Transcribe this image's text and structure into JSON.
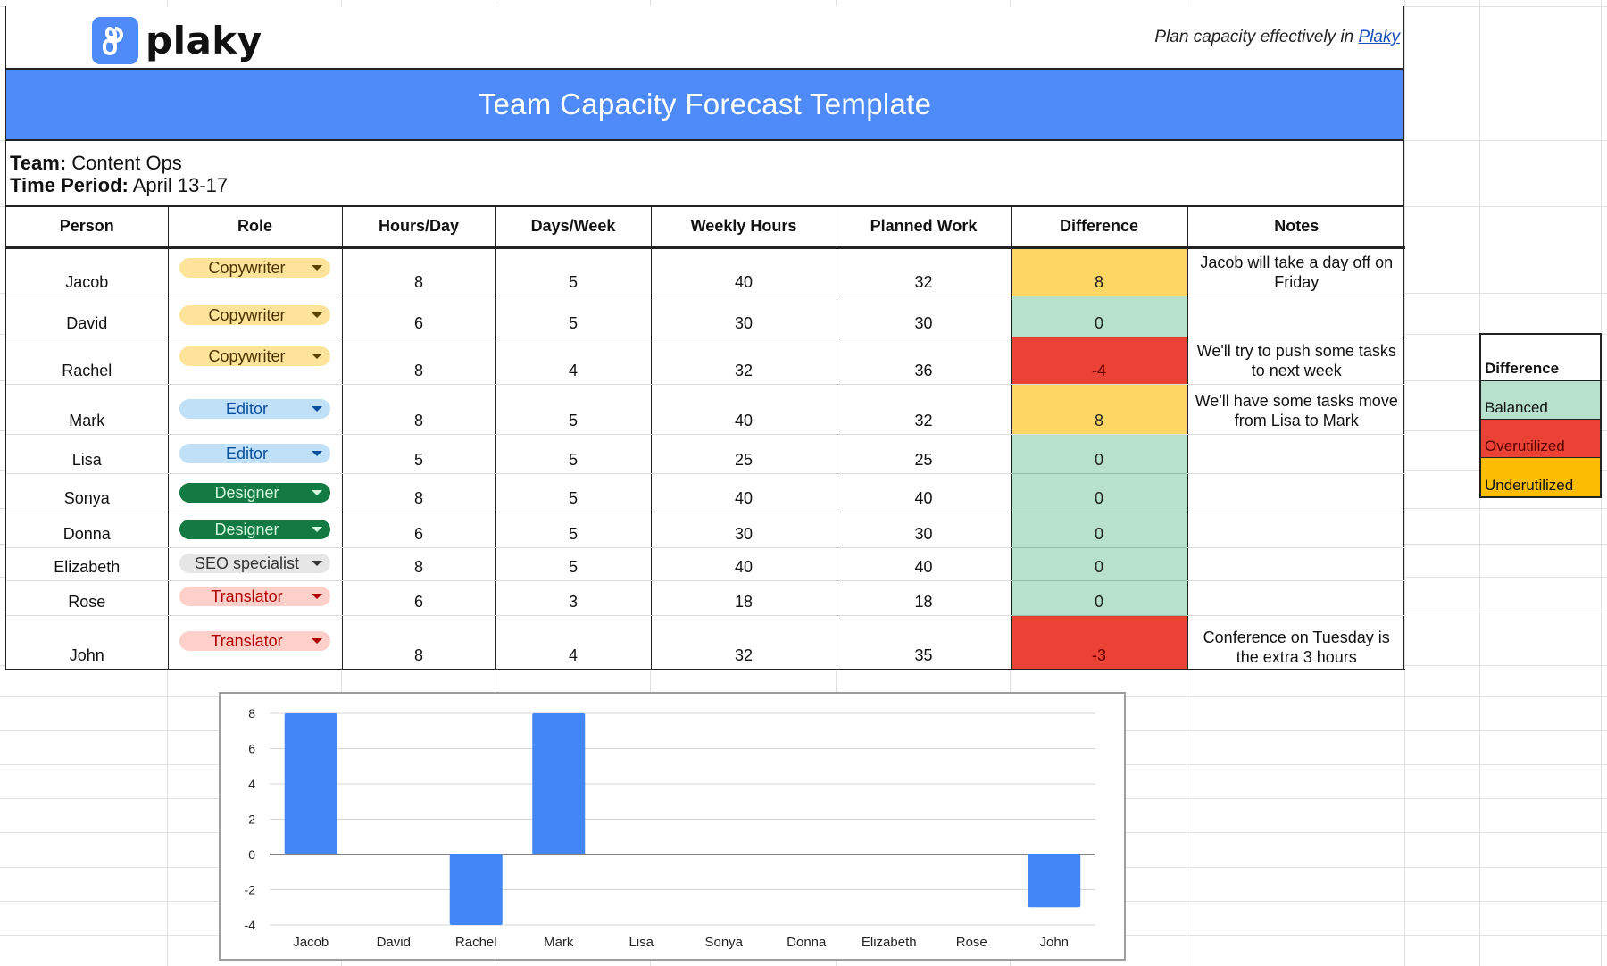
{
  "brand": {
    "name": "plaky",
    "tagline_prefix": "Plan capacity effectively in ",
    "tagline_link": "Plaky"
  },
  "title": "Team Capacity Forecast Template",
  "info": {
    "team_label": "Team:",
    "team_value": " Content Ops",
    "period_label": "Time Period:",
    "period_value": " April 13-17"
  },
  "table": {
    "headers": [
      "Person",
      "Role",
      "Hours/Day",
      "Days/Week",
      "Weekly Hours",
      "Planned Work",
      "Difference",
      "Notes"
    ],
    "rows": [
      {
        "person": "Jacob",
        "role": "Copywriter",
        "hours_day": "8",
        "days_week": "5",
        "weekly_hours": "40",
        "planned": "32",
        "difference": "8",
        "status": "Underutilized",
        "notes": "Jacob will take a day off on Friday"
      },
      {
        "person": "David",
        "role": "Copywriter",
        "hours_day": "6",
        "days_week": "5",
        "weekly_hours": "30",
        "planned": "30",
        "difference": "0",
        "status": "Balanced",
        "notes": ""
      },
      {
        "person": "Rachel",
        "role": "Copywriter",
        "hours_day": "8",
        "days_week": "4",
        "weekly_hours": "32",
        "planned": "36",
        "difference": "-4",
        "status": "Overutilized",
        "notes": "We'll try to push some tasks to next week"
      },
      {
        "person": "Mark",
        "role": "Editor",
        "hours_day": "8",
        "days_week": "5",
        "weekly_hours": "40",
        "planned": "32",
        "difference": "8",
        "status": "Underutilized",
        "notes": "We'll have some tasks move from Lisa to Mark"
      },
      {
        "person": "Lisa",
        "role": "Editor",
        "hours_day": "5",
        "days_week": "5",
        "weekly_hours": "25",
        "planned": "25",
        "difference": "0",
        "status": "Balanced",
        "notes": ""
      },
      {
        "person": "Sonya",
        "role": "Designer",
        "hours_day": "8",
        "days_week": "5",
        "weekly_hours": "40",
        "planned": "40",
        "difference": "0",
        "status": "Balanced",
        "notes": ""
      },
      {
        "person": "Donna",
        "role": "Designer",
        "hours_day": "6",
        "days_week": "5",
        "weekly_hours": "30",
        "planned": "30",
        "difference": "0",
        "status": "Balanced",
        "notes": ""
      },
      {
        "person": "Elizabeth",
        "role": "SEO specialist",
        "hours_day": "8",
        "days_week": "5",
        "weekly_hours": "40",
        "planned": "40",
        "difference": "0",
        "status": "Balanced",
        "notes": ""
      },
      {
        "person": "Rose",
        "role": "Translator",
        "hours_day": "6",
        "days_week": "3",
        "weekly_hours": "18",
        "planned": "18",
        "difference": "0",
        "status": "Balanced",
        "notes": ""
      },
      {
        "person": "John",
        "role": "Translator",
        "hours_day": "8",
        "days_week": "4",
        "weekly_hours": "32",
        "planned": "35",
        "difference": "-3",
        "status": "Overutilized",
        "notes": "Conference on Tuesday is the extra 3 hours"
      }
    ]
  },
  "legend": {
    "title": "Difference",
    "items": [
      {
        "label": "Balanced",
        "color": "#b7e1cd"
      },
      {
        "label": "Overutilized",
        "color": "#ea4335"
      },
      {
        "label": "Underutilized",
        "color": "#fbbc04"
      }
    ]
  },
  "colors": {
    "brand_blue": "#4f8bf6",
    "bar_blue": "#4285f4",
    "balanced": "#b7e1cd",
    "overutilized": "#ea4335",
    "underutilized": "#fdd663"
  },
  "chart_data": {
    "type": "bar",
    "title": "",
    "categories": [
      "Jacob",
      "David",
      "Rachel",
      "Mark",
      "Lisa",
      "Sonya",
      "Donna",
      "Elizabeth",
      "Rose",
      "John"
    ],
    "values": [
      8,
      0,
      -4,
      8,
      0,
      0,
      0,
      0,
      0,
      -3
    ],
    "xlabel": "",
    "ylabel": "",
    "ylim": [
      -4,
      8
    ],
    "yticks": [
      8,
      6,
      4,
      2,
      0,
      -2,
      -4
    ],
    "grid": true,
    "legend": "none"
  }
}
